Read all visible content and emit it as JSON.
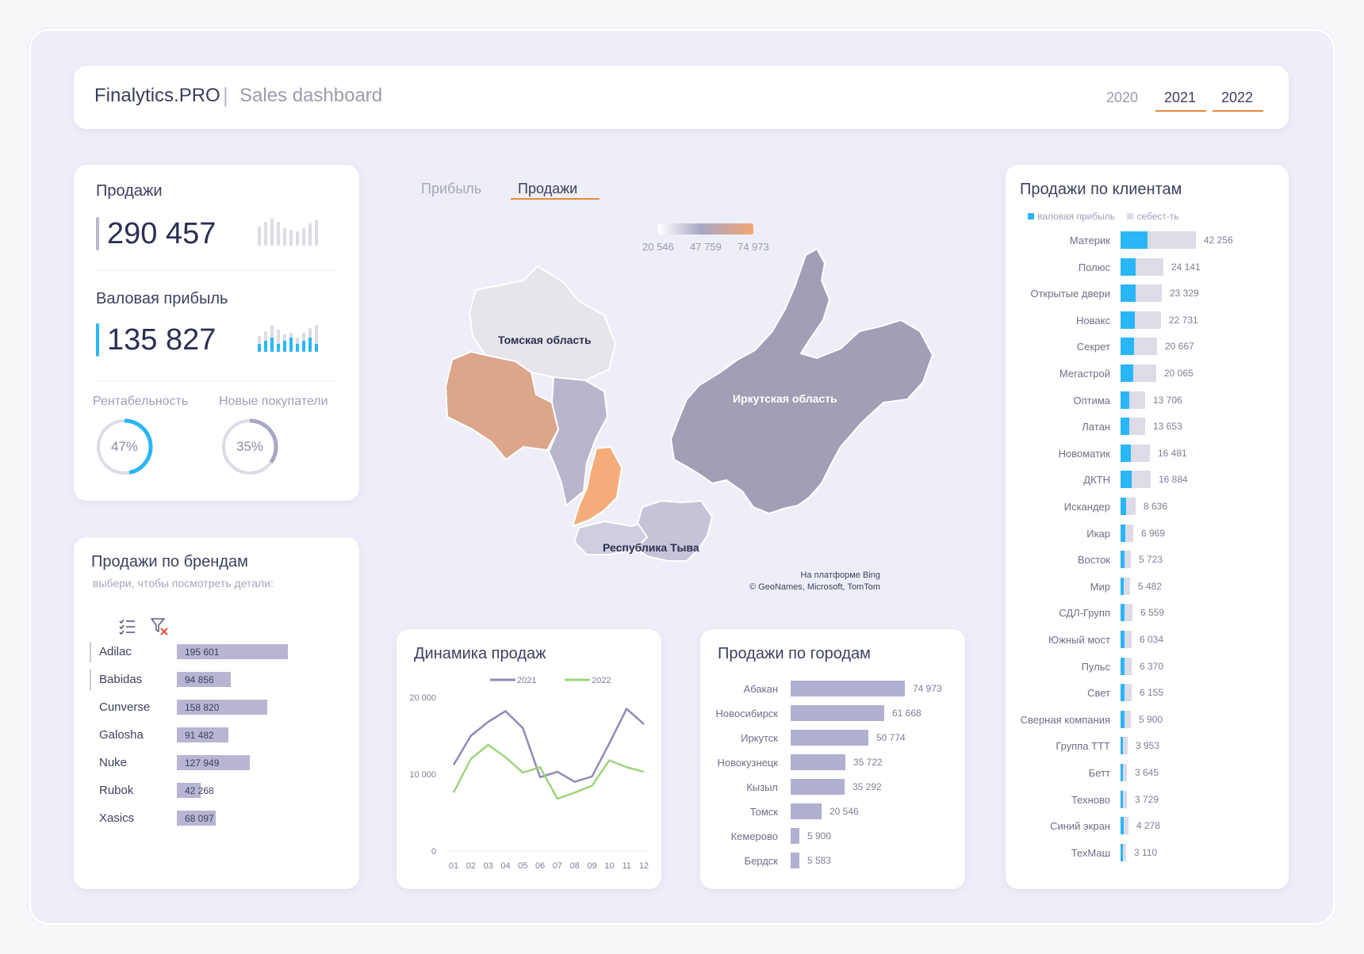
{
  "header": {
    "brand": "Finalytics.PRO",
    "separator": "|",
    "subtitle": "Sales dashboard",
    "years": [
      "2020",
      "2021",
      "2022"
    ],
    "active_years": [
      "2021",
      "2022"
    ]
  },
  "kpi": {
    "sales_label": "Продажи",
    "sales_value": "290 457",
    "gross_label": "Валовая прибыль",
    "gross_value": "135 827",
    "profitability_label": "Рентабельность",
    "profitability_value": "47%",
    "profitability_fraction": 0.47,
    "new_buyers_label": "Новые покупатели",
    "new_buyers_value": "35%",
    "new_buyers_fraction": 0.35
  },
  "brands": {
    "title": "Продажи по брендам",
    "hint": "выбери, чтобы посмотреть детали:",
    "items": [
      {
        "name": "Adilac",
        "label": "195 601",
        "value": 195601,
        "selected": true
      },
      {
        "name": "Babidas",
        "label": "94 856",
        "value": 94856,
        "selected": true
      },
      {
        "name": "Cunverse",
        "label": "158 820",
        "value": 158820,
        "selected": false
      },
      {
        "name": "Galosha",
        "label": "91 482",
        "value": 91482,
        "selected": false
      },
      {
        "name": "Nuke",
        "label": "127 949",
        "value": 127949,
        "selected": false
      },
      {
        "name": "Rubok",
        "label": "42 268",
        "value": 42268,
        "selected": false
      },
      {
        "name": "Xasics",
        "label": "68 097",
        "value": 68097,
        "selected": false
      }
    ]
  },
  "map": {
    "tabs": [
      "Прибыль",
      "Продажи"
    ],
    "active_tab": "Продажи",
    "legend": [
      "20 546",
      "47 759",
      "74 973"
    ],
    "regions": [
      "Томская область",
      "Иркутская область",
      "Республика Тыва"
    ],
    "attribution_1": "На платформе Bing",
    "attribution_2": "© GeoNames, Microsoft, TomTom"
  },
  "clients": {
    "title": "Продажи по клиентам",
    "legend_gp": "валовая прибыль",
    "legend_cost": "себест-ть",
    "colors": {
      "gp": "#29b6f6",
      "cost": "#dcdbe6"
    },
    "items": [
      {
        "name": "Материк",
        "label": "42 256",
        "value": 42256
      },
      {
        "name": "Полюс",
        "label": "24 141",
        "value": 24141
      },
      {
        "name": "Открытые двери",
        "label": "23 329",
        "value": 23329
      },
      {
        "name": "Новакс",
        "label": "22 731",
        "value": 22731
      },
      {
        "name": "Секрет",
        "label": "20 667",
        "value": 20667
      },
      {
        "name": "Мегастрой",
        "label": "20 065",
        "value": 20065
      },
      {
        "name": "Оптима",
        "label": "13 706",
        "value": 13706
      },
      {
        "name": "Латан",
        "label": "13 653",
        "value": 13653
      },
      {
        "name": "Новоматик",
        "label": "16 481",
        "value": 16481
      },
      {
        "name": "ДКТН",
        "label": "16 884",
        "value": 16884
      },
      {
        "name": "Искандер",
        "label": "8 636",
        "value": 8636
      },
      {
        "name": "Икар",
        "label": "6 969",
        "value": 6969
      },
      {
        "name": "Восток",
        "label": "5 723",
        "value": 5723
      },
      {
        "name": "Мир",
        "label": "5 482",
        "value": 5482
      },
      {
        "name": "СДЛ-Групп",
        "label": "6 559",
        "value": 6559
      },
      {
        "name": "Южный мост",
        "label": "6 034",
        "value": 6034
      },
      {
        "name": "Пульс",
        "label": "6 370",
        "value": 6370
      },
      {
        "name": "Свет",
        "label": "6 155",
        "value": 6155
      },
      {
        "name": "Сверная компания",
        "label": "5 900",
        "value": 5900
      },
      {
        "name": "Группа ТТТ",
        "label": "3 953",
        "value": 3953
      },
      {
        "name": "Бетт",
        "label": "3 645",
        "value": 3645
      },
      {
        "name": "Техново",
        "label": "3 729",
        "value": 3729
      },
      {
        "name": "Синий экран",
        "label": "4 278",
        "value": 4278
      },
      {
        "name": "ТехМаш",
        "label": "3 110",
        "value": 3110
      }
    ]
  },
  "cities": {
    "title": "Продажи по городам",
    "items": [
      {
        "name": "Абакан",
        "label": "74 973",
        "value": 74973
      },
      {
        "name": "Новосибирск",
        "label": "61 668",
        "value": 61668
      },
      {
        "name": "Иркутск",
        "label": "50 774",
        "value": 50774
      },
      {
        "name": "Новокузнецк",
        "label": "35 722",
        "value": 35722
      },
      {
        "name": "Кызыл",
        "label": "35 292",
        "value": 35292
      },
      {
        "name": "Томск",
        "label": "20 546",
        "value": 20546
      },
      {
        "name": "Кемерово",
        "label": "5 900",
        "value": 5900
      },
      {
        "name": "Бердск",
        "label": "5 583",
        "value": 5583
      }
    ]
  },
  "chart_data": {
    "type": "line",
    "title": "Динамика продаж",
    "x": [
      "01",
      "02",
      "03",
      "04",
      "05",
      "06",
      "07",
      "08",
      "09",
      "10",
      "11",
      "12"
    ],
    "yticks": [
      "20 000",
      "10 000",
      "0"
    ],
    "ylim": [
      0,
      20000
    ],
    "legend_placement": "top",
    "series": [
      {
        "name": "2021",
        "color": "#8e8bb5",
        "values": [
          11200,
          15000,
          16800,
          18200,
          16000,
          9600,
          10300,
          9000,
          9700,
          14000,
          18500,
          16500
        ]
      },
      {
        "name": "2022",
        "color": "#9fd37e",
        "values": [
          7600,
          12000,
          13800,
          12200,
          10200,
          10900,
          6800,
          7600,
          8500,
          11800,
          10900,
          10300
        ]
      }
    ]
  }
}
